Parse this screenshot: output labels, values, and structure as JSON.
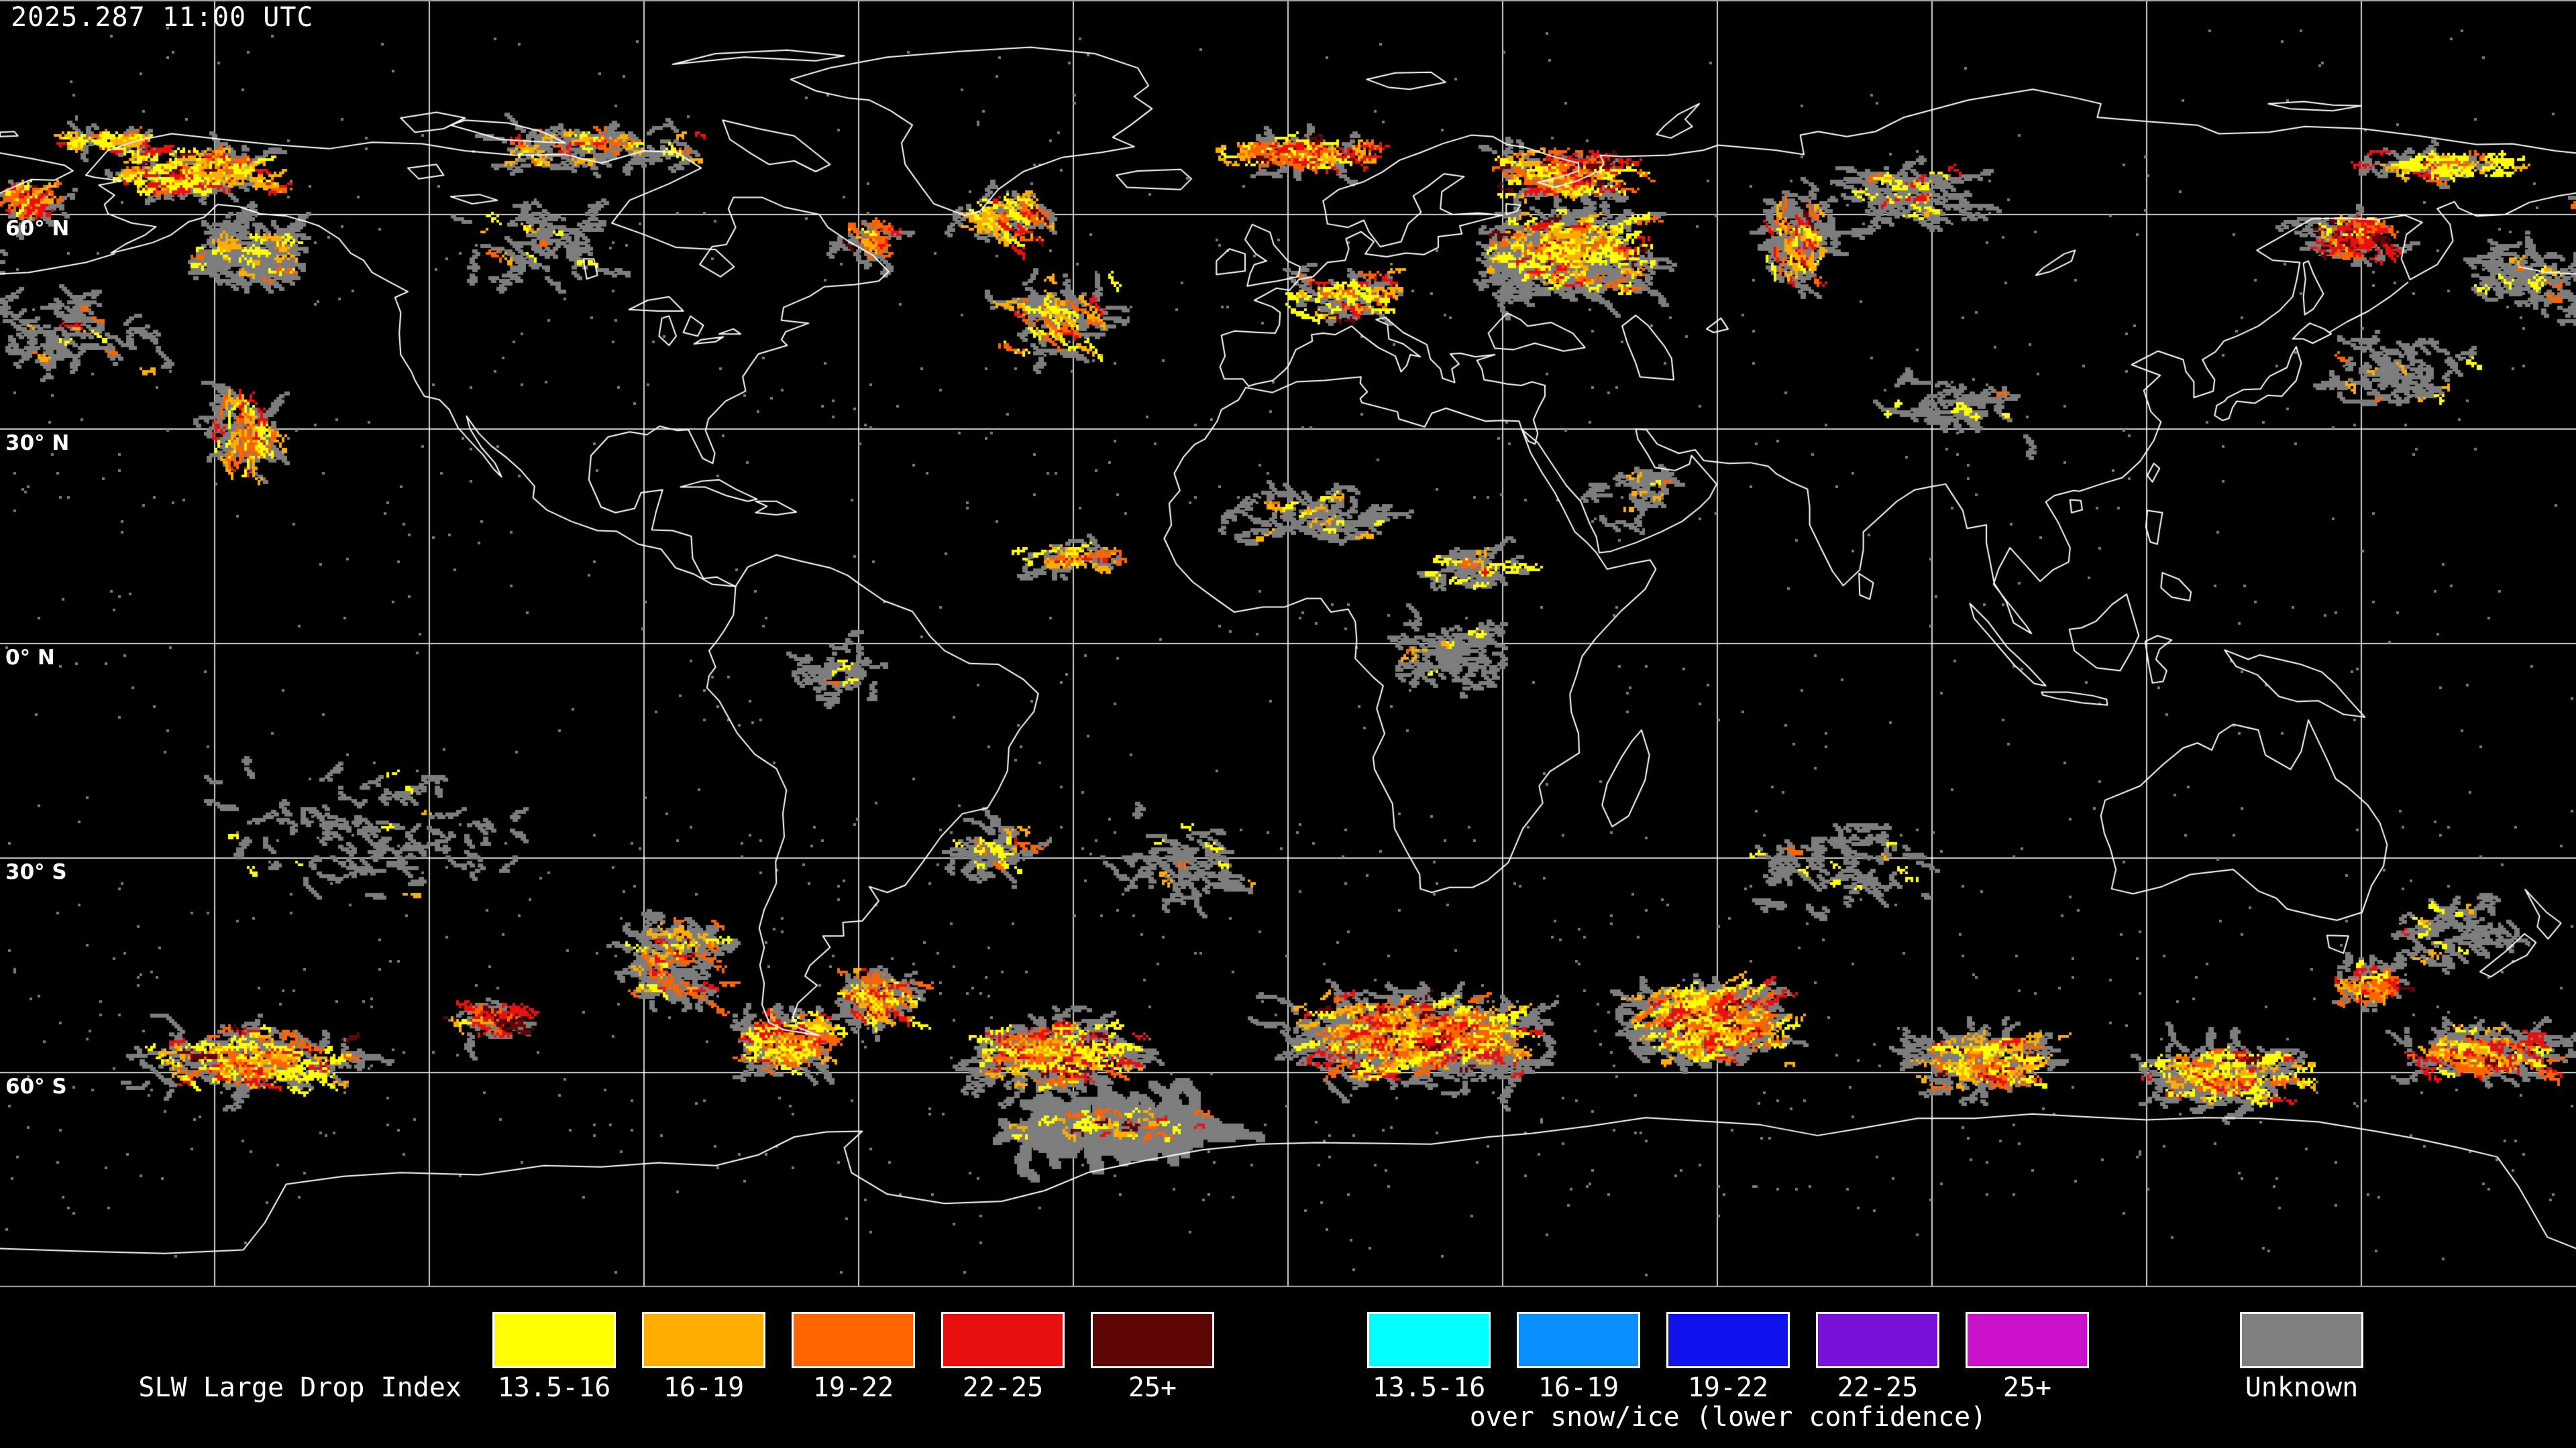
{
  "header": {
    "timestamp": "2025.287 11:00 UTC"
  },
  "map": {
    "projection": "equirectangular",
    "graticule_step_deg": 30,
    "latitude_labels": [
      {
        "label": "60° N",
        "lat": 60
      },
      {
        "label": "30° N",
        "lat": 30
      },
      {
        "label": "0° N",
        "lat": 0
      },
      {
        "label": "30° S",
        "lat": -30
      },
      {
        "label": "60° S",
        "lat": -60
      }
    ],
    "colors": {
      "background": "#000000",
      "coastline": "#ffffff",
      "graticule": "#ffffff",
      "map_border": "#aaaaaa",
      "gray_cloud": "#7d7d7d",
      "slw": [
        "#ffff00",
        "#ffae00",
        "#ff6400",
        "#eb1010",
        "#5f0606"
      ]
    },
    "data_clusters": [
      {
        "name": "alaska-interior",
        "lon": -153,
        "lat": 66,
        "dlon": 12,
        "dlat": 3.5,
        "angle": -12,
        "gray": 50,
        "grayLen": 9,
        "streaks": 150,
        "len": 9,
        "weights": [
          3,
          3,
          2,
          1,
          0.3
        ]
      },
      {
        "name": "bering-strait-red",
        "lon": -177,
        "lat": 62,
        "dlon": 4,
        "dlat": 2.5,
        "angle": -35,
        "gray": 14,
        "grayLen": 7,
        "streaks": 45,
        "len": 8,
        "weights": [
          1,
          1,
          2,
          3,
          0.6
        ]
      },
      {
        "name": "chukchi-band",
        "lon": -166,
        "lat": 70.5,
        "dlon": 7,
        "dlat": 1.2,
        "angle": 3,
        "gray": 10,
        "grayLen": 6,
        "streaks": 40,
        "len": 7,
        "weights": [
          4,
          2,
          1,
          0.3,
          0
        ]
      },
      {
        "name": "gulf-alaska-gray",
        "lon": -146,
        "lat": 55,
        "dlon": 9,
        "dlat": 4,
        "angle": 15,
        "gray": 90,
        "grayLen": 10,
        "streaks": 30,
        "len": 7,
        "weights": [
          2,
          1.5,
          1,
          0.3,
          0
        ]
      },
      {
        "name": "ne-pacific-streaks",
        "lon": -146,
        "lat": 30,
        "dlon": 4.5,
        "dlat": 7,
        "angle": 78,
        "gray": 40,
        "grayLen": 8,
        "streaks": 70,
        "len": 9,
        "weights": [
          2,
          2,
          2,
          0.5,
          0
        ]
      },
      {
        "name": "n-pacific-sparse",
        "lon": -170,
        "lat": 44,
        "dlon": 12,
        "dlat": 7,
        "angle": 20,
        "gray": 60,
        "grayLen": 6,
        "streaks": 12,
        "len": 5,
        "weights": [
          1,
          1,
          0.5,
          0.2,
          0
        ]
      },
      {
        "name": "canada-arctic",
        "lon": -98,
        "lat": 70,
        "dlon": 17,
        "dlat": 3.5,
        "angle": 8,
        "gray": 55,
        "grayLen": 7,
        "streaks": 45,
        "len": 6,
        "weights": [
          2,
          2,
          1,
          0.5,
          0.1
        ]
      },
      {
        "name": "canada-gray",
        "lon": -105,
        "lat": 56,
        "dlon": 11,
        "dlat": 6,
        "angle": 25,
        "gray": 45,
        "grayLen": 7,
        "streaks": 10,
        "len": 5,
        "weights": [
          2,
          1,
          0.3,
          0.1,
          0
        ]
      },
      {
        "name": "labrador-spots",
        "lon": -59,
        "lat": 57,
        "dlon": 4,
        "dlat": 3,
        "angle": 30,
        "gray": 16,
        "grayLen": 6,
        "streaks": 26,
        "len": 6,
        "weights": [
          1,
          1,
          2,
          2,
          0.3
        ]
      },
      {
        "name": "greenland-sea-streaks",
        "lon": -40,
        "lat": 60,
        "dlon": 7,
        "dlat": 4,
        "angle": 35,
        "gray": 24,
        "grayLen": 7,
        "streaks": 55,
        "len": 8,
        "weights": [
          2,
          2,
          2,
          1,
          0.2
        ]
      },
      {
        "name": "mid-atlantic-streaks",
        "lon": -33,
        "lat": 46,
        "dlon": 9,
        "dlat": 6,
        "angle": 40,
        "gray": 40,
        "grayLen": 7,
        "streaks": 50,
        "len": 8,
        "weights": [
          2,
          1.5,
          1.5,
          0.5,
          0.1
        ]
      },
      {
        "name": "norwegian-sea-swath",
        "lon": 0,
        "lat": 69,
        "dlon": 11,
        "dlat": 2.2,
        "angle": 8,
        "gray": 22,
        "grayLen": 7,
        "streaks": 110,
        "len": 10,
        "weights": [
          2,
          2,
          3,
          2,
          0.5
        ]
      },
      {
        "name": "barents-system",
        "lon": 38,
        "lat": 66,
        "dlon": 11,
        "dlat": 3.5,
        "angle": 5,
        "gray": 40,
        "grayLen": 8,
        "streaks": 120,
        "len": 9,
        "weights": [
          2,
          2,
          3,
          3,
          1
        ]
      },
      {
        "name": "euro-russia-storm",
        "lon": 38,
        "lat": 55,
        "dlon": 13,
        "dlat": 6.5,
        "angle": -10,
        "gray": 190,
        "grayLen": 10,
        "streaks": 160,
        "len": 8,
        "weights": [
          3,
          2,
          1.5,
          1,
          0.3
        ]
      },
      {
        "name": "europe-scatter",
        "lon": 7,
        "lat": 49,
        "dlon": 9,
        "dlat": 3.5,
        "angle": 20,
        "gray": 30,
        "grayLen": 6,
        "streaks": 55,
        "len": 7,
        "weights": [
          3,
          1.5,
          1,
          0.5,
          0.1
        ]
      },
      {
        "name": "urals-streaks",
        "lon": 71,
        "lat": 57,
        "dlon": 5,
        "dlat": 7,
        "angle": 75,
        "gray": 60,
        "grayLen": 8,
        "streaks": 55,
        "len": 8,
        "weights": [
          2,
          2,
          2,
          1,
          0.2
        ]
      },
      {
        "name": "west-siberia-gray",
        "lon": 86,
        "lat": 63,
        "dlon": 9,
        "dlat": 4,
        "angle": 10,
        "gray": 55,
        "grayLen": 8,
        "streaks": 25,
        "len": 6,
        "weights": [
          2,
          1,
          0.5,
          0.2,
          0
        ]
      },
      {
        "name": "okhotsk-red",
        "lon": 148,
        "lat": 57,
        "dlon": 7,
        "dlat": 3.5,
        "angle": 25,
        "gray": 30,
        "grayLen": 7,
        "streaks": 70,
        "len": 8,
        "weights": [
          1,
          1,
          2,
          3,
          1.5
        ]
      },
      {
        "name": "chukotka-yellow-band",
        "lon": 160,
        "lat": 67,
        "dlon": 13,
        "dlat": 2.2,
        "angle": 5,
        "gray": 22,
        "grayLen": 6,
        "streaks": 65,
        "len": 8,
        "weights": [
          4,
          2,
          1,
          0.3,
          0
        ]
      },
      {
        "name": "kamchatka-east-gray",
        "lon": 172,
        "lat": 52,
        "dlon": 8,
        "dlat": 4.5,
        "angle": 20,
        "gray": 45,
        "grayLen": 7,
        "streaks": 12,
        "len": 5,
        "weights": [
          1,
          1,
          0.5,
          0.2,
          0
        ]
      },
      {
        "name": "nw-pacific-gray",
        "lon": 155,
        "lat": 38,
        "dlon": 11,
        "dlat": 5.5,
        "angle": 30,
        "gray": 55,
        "grayLen": 6,
        "streaks": 10,
        "len": 5,
        "weights": [
          1,
          0.7,
          0.3,
          0.1,
          0
        ]
      },
      {
        "name": "atlantic-itcz",
        "lon": -31,
        "lat": 12,
        "dlon": 8,
        "dlat": 1.8,
        "angle": 3,
        "gray": 18,
        "grayLen": 6,
        "streaks": 34,
        "len": 7,
        "weights": [
          1,
          2,
          2,
          1,
          0.1
        ]
      },
      {
        "name": "sahara-gray",
        "lon": 3,
        "lat": 18,
        "dlon": 13,
        "dlat": 4,
        "angle": 0,
        "gray": 55,
        "grayLen": 7,
        "streaks": 16,
        "len": 5,
        "weights": [
          2,
          1,
          0.3,
          0,
          0
        ]
      },
      {
        "name": "sahel-dots",
        "lon": 26,
        "lat": 11,
        "dlon": 8,
        "dlat": 3,
        "angle": 0,
        "gray": 30,
        "grayLen": 6,
        "streaks": 20,
        "len": 5,
        "weights": [
          2,
          1,
          0.4,
          0.1,
          0
        ]
      },
      {
        "name": "central-africa-gray",
        "lon": 22,
        "lat": -1,
        "dlon": 8,
        "dlat": 5,
        "angle": 0,
        "gray": 55,
        "grayLen": 7,
        "streaks": 8,
        "len": 4,
        "weights": [
          1,
          0.5,
          0.2,
          0,
          0
        ]
      },
      {
        "name": "mideast-sparse",
        "lon": 48,
        "lat": 22,
        "dlon": 8,
        "dlat": 5,
        "angle": 0,
        "gray": 26,
        "grayLen": 5,
        "streaks": 6,
        "len": 4,
        "weights": [
          1,
          0.5,
          0.2,
          0,
          0
        ]
      },
      {
        "name": "asia-sparse",
        "lon": 92,
        "lat": 33,
        "dlon": 12,
        "dlat": 5,
        "angle": 0,
        "gray": 40,
        "grayLen": 6,
        "streaks": 8,
        "len": 4,
        "weights": [
          1,
          0.5,
          0.2,
          0,
          0
        ]
      },
      {
        "name": "amazon-gray",
        "lon": -63,
        "lat": -4,
        "dlon": 7,
        "dlat": 4.5,
        "angle": 0,
        "gray": 32,
        "grayLen": 6,
        "streaks": 5,
        "len": 4,
        "weights": [
          1,
          0.4,
          0.1,
          0,
          0
        ]
      },
      {
        "name": "s-pacific-sparse",
        "lon": -128,
        "lat": -26,
        "dlon": 24,
        "dlat": 9,
        "angle": 20,
        "gray": 80,
        "grayLen": 5,
        "streaks": 8,
        "len": 4,
        "weights": [
          1,
          0.4,
          0.1,
          0,
          0
        ]
      },
      {
        "name": "s-atlantic-sparse",
        "lon": -15,
        "lat": -30,
        "dlon": 11,
        "dlat": 7,
        "angle": 30,
        "gray": 45,
        "grayLen": 6,
        "streaks": 8,
        "len": 5,
        "weights": [
          1,
          0.5,
          0.2,
          0,
          0
        ]
      },
      {
        "name": "brazil-convergence",
        "lon": -42,
        "lat": -28,
        "dlon": 6,
        "dlat": 4,
        "angle": 40,
        "gray": 30,
        "grayLen": 7,
        "streaks": 18,
        "len": 7,
        "weights": [
          1.5,
          1,
          0.8,
          0.2,
          0
        ]
      },
      {
        "name": "s-indian-sparse",
        "lon": 77,
        "lat": -31,
        "dlon": 14,
        "dlat": 7,
        "angle": 25,
        "gray": 55,
        "grayLen": 6,
        "streaks": 10,
        "len": 5,
        "weights": [
          1,
          0.5,
          0.2,
          0,
          0
        ]
      },
      {
        "name": "tasman-gray",
        "lon": 162,
        "lat": -40,
        "dlon": 10,
        "dlat": 6,
        "angle": 25,
        "gray": 45,
        "grayLen": 6,
        "streaks": 12,
        "len": 5,
        "weights": [
          1.5,
          0.8,
          0.4,
          0.2,
          0
        ]
      },
      {
        "name": "tasman-orange",
        "lon": 150,
        "lat": -47,
        "dlon": 5,
        "dlat": 3.5,
        "angle": 35,
        "gray": 20,
        "grayLen": 6,
        "streaks": 45,
        "len": 7,
        "weights": [
          1.5,
          2,
          2.5,
          1,
          0.2
        ]
      },
      {
        "name": "chile-swirl",
        "lon": -86,
        "lat": -44,
        "dlon": 7,
        "dlat": 6.5,
        "angle": 30,
        "gray": 85,
        "grayLen": 8,
        "streaks": 55,
        "len": 7,
        "weights": [
          1,
          2,
          2.5,
          1,
          0.2
        ]
      },
      {
        "name": "se-pacific-darkred",
        "lon": -112,
        "lat": -52,
        "dlon": 6,
        "dlat": 3,
        "angle": 25,
        "gray": 15,
        "grayLen": 6,
        "streaks": 50,
        "len": 7,
        "weights": [
          0.5,
          1,
          1.5,
          2.5,
          2
        ]
      },
      {
        "name": "so-pacific-band",
        "lon": -145,
        "lat": -58,
        "dlon": 16,
        "dlat": 4.5,
        "angle": 12,
        "gray": 90,
        "grayLen": 8,
        "streaks": 140,
        "len": 8,
        "weights": [
          2.5,
          2,
          2,
          1.5,
          0.5
        ]
      },
      {
        "name": "drake-passage",
        "lon": -71,
        "lat": -55,
        "dlon": 7,
        "dlat": 4.5,
        "angle": 18,
        "gray": 60,
        "grayLen": 8,
        "streaks": 120,
        "len": 8,
        "weights": [
          3,
          2,
          2.5,
          1.5,
          0.5
        ]
      },
      {
        "name": "patagonia-shelf",
        "lon": -58,
        "lat": -49,
        "dlon": 6,
        "dlat": 4.5,
        "angle": 30,
        "gray": 45,
        "grayLen": 7,
        "streaks": 80,
        "len": 7,
        "weights": [
          2,
          2,
          2,
          1,
          0.2
        ]
      },
      {
        "name": "so-atlantic-block",
        "lon": -33,
        "lat": -57,
        "dlon": 12,
        "dlat": 5,
        "angle": 10,
        "gray": 130,
        "grayLen": 9,
        "streaks": 170,
        "len": 8,
        "weights": [
          3,
          2,
          2,
          2,
          0.7
        ]
      },
      {
        "name": "so-big-system",
        "lon": 17,
        "lat": -55,
        "dlon": 19,
        "dlat": 6,
        "angle": -8,
        "gray": 290,
        "grayLen": 10,
        "streaks": 330,
        "len": 9,
        "weights": [
          3,
          2.5,
          2.5,
          2,
          0.7
        ]
      },
      {
        "name": "so-indian-swirl",
        "lon": 58,
        "lat": -53,
        "dlon": 12,
        "dlat": 6,
        "angle": -15,
        "gray": 170,
        "grayLen": 9,
        "streaks": 230,
        "len": 9,
        "weights": [
          3,
          2.5,
          2.5,
          2,
          0.5
        ]
      },
      {
        "name": "so-mid-indian",
        "lon": 97,
        "lat": -58,
        "dlon": 12,
        "dlat": 4,
        "angle": 8,
        "gray": 100,
        "grayLen": 8,
        "streaks": 110,
        "len": 8,
        "weights": [
          2,
          2,
          2,
          1,
          0.5
        ]
      },
      {
        "name": "so-australia",
        "lon": 130,
        "lat": -60,
        "dlon": 12,
        "dlat": 4,
        "angle": 10,
        "gray": 85,
        "grayLen": 8,
        "streaks": 110,
        "len": 8,
        "weights": [
          3,
          2,
          1.5,
          1,
          0.3
        ]
      },
      {
        "name": "so-new-zealand",
        "lon": 166,
        "lat": -57,
        "dlon": 11,
        "dlat": 4,
        "angle": 15,
        "gray": 70,
        "grayLen": 8,
        "streaks": 100,
        "len": 8,
        "weights": [
          2,
          2,
          2,
          1.5,
          0.5
        ]
      },
      {
        "name": "weddell-shelf-gray",
        "lon": -25,
        "lat": -67,
        "dlon": 16,
        "dlat": 2.5,
        "angle": 5,
        "gray": 120,
        "grayLen": 12,
        "graySize": 14,
        "streaks": 40,
        "len": 6,
        "weights": [
          1.5,
          1,
          1,
          0.5,
          0.2
        ]
      }
    ]
  },
  "legend": {
    "title": "SLW Large Drop Index",
    "scale": [
      {
        "label": "13.5-16",
        "color": "#ffff00"
      },
      {
        "label": "16-19",
        "color": "#ffae00"
      },
      {
        "label": "19-22",
        "color": "#ff6400"
      },
      {
        "label": "22-25",
        "color": "#eb1010"
      },
      {
        "label": "25+",
        "color": "#5f0606"
      }
    ],
    "snow_ice_scale": [
      {
        "label": "13.5-16",
        "color": "#00ffff"
      },
      {
        "label": "16-19",
        "color": "#0a8eff"
      },
      {
        "label": "19-22",
        "color": "#1012ee"
      },
      {
        "label": "22-25",
        "color": "#7911d9"
      },
      {
        "label": "25+",
        "color": "#cc11cc"
      }
    ],
    "snow_ice_subtitle": "over snow/ice (lower confidence)",
    "unknown": {
      "label": "Unknown",
      "color": "#808080"
    }
  }
}
